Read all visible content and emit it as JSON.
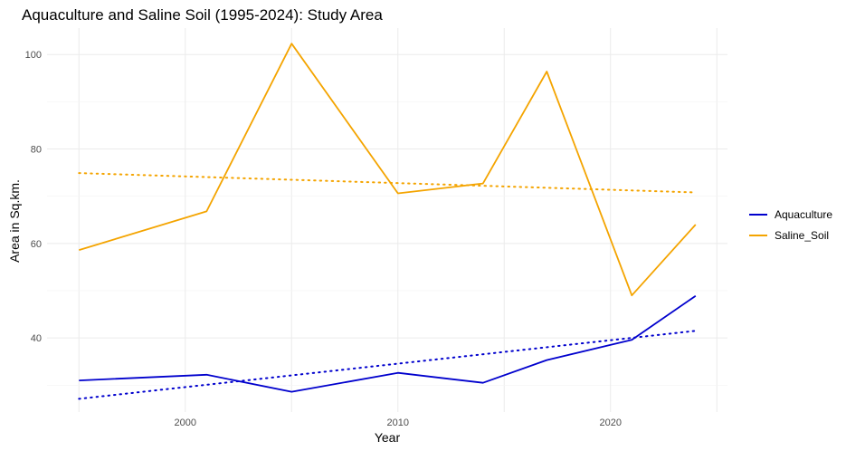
{
  "chart_data": {
    "type": "line",
    "title": "Aquaculture and Saline Soil (1995-2024): Study Area",
    "xlabel": "Year",
    "ylabel": "Area in Sq.km.",
    "xlim": [
      1993.5,
      2025.5
    ],
    "ylim": [
      24.3,
      105.6
    ],
    "x_ticks": [
      2000,
      2010,
      2020
    ],
    "y_ticks": [
      40,
      60,
      80,
      100
    ],
    "grid": true,
    "legend_position": "right",
    "series": [
      {
        "name": "Aquaculture",
        "color": "#0000cd",
        "x": [
          1995,
          2001,
          2005,
          2010,
          2014,
          2017,
          2021,
          2024
        ],
        "y": [
          31.0,
          32.2,
          28.6,
          32.6,
          30.5,
          35.3,
          39.6,
          48.9
        ],
        "trend": {
          "x": [
            1995,
            2024
          ],
          "y": [
            27.1,
            41.5
          ]
        }
      },
      {
        "name": "Saline_Soil",
        "color": "#f4a400",
        "x": [
          1995,
          2001,
          2005,
          2010,
          2014,
          2017,
          2021,
          2024
        ],
        "y": [
          58.6,
          66.8,
          102.3,
          70.6,
          72.7,
          96.4,
          49.0,
          64.0
        ],
        "trend": {
          "x": [
            1995,
            2024
          ],
          "y": [
            74.9,
            70.8
          ]
        }
      }
    ]
  }
}
